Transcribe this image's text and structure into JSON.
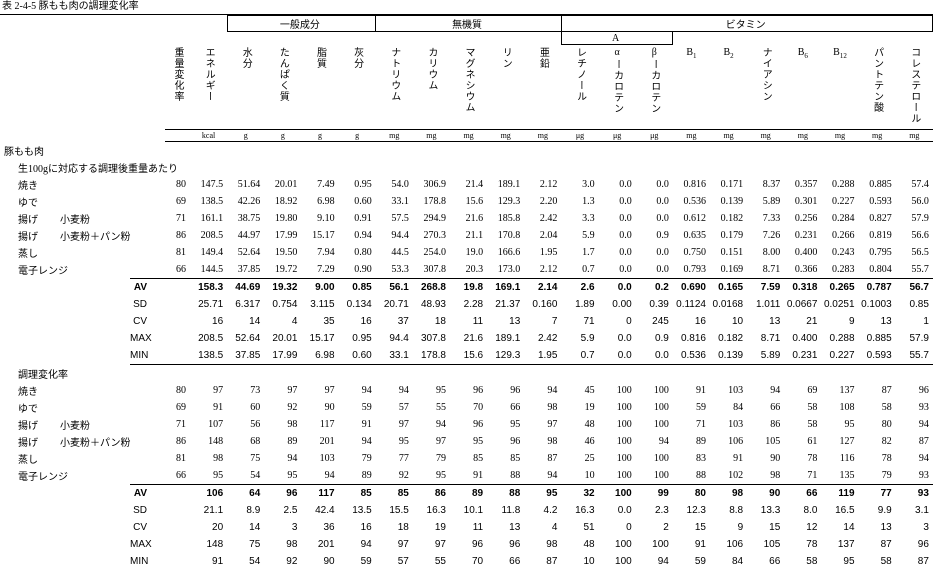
{
  "title": "表 2-4-5  豚もも肉の調理変化率",
  "groups": [
    {
      "label": "一般成分"
    },
    {
      "label": "無機質"
    },
    {
      "label": "ビタミン"
    },
    {
      "label": "A"
    }
  ],
  "columns": [
    {
      "label": "重量変化率"
    },
    {
      "label": "エネルギー",
      "unit": "kcal"
    },
    {
      "label": "水分",
      "unit": "g"
    },
    {
      "label": "たんぱく質",
      "unit": "g"
    },
    {
      "label": "脂質",
      "unit": "g"
    },
    {
      "label": "灰分",
      "unit": "g"
    },
    {
      "label": "ナトリウム",
      "unit": "mg"
    },
    {
      "label": "カリウム",
      "unit": "mg"
    },
    {
      "label": "マグネシウム",
      "unit": "mg"
    },
    {
      "label": "リン",
      "unit": "mg"
    },
    {
      "label": "亜鉛",
      "unit": "mg"
    },
    {
      "label": "レチノール",
      "unit": "μg"
    },
    {
      "label": "αーカロテン",
      "unit": "μg"
    },
    {
      "label": "βーカロテン",
      "unit": "μg"
    },
    {
      "label": "B",
      "sub": "1",
      "unit": "mg"
    },
    {
      "label": "B",
      "sub": "2",
      "unit": "mg"
    },
    {
      "label": "ナイアシン",
      "unit": "mg"
    },
    {
      "label": "B",
      "sub": "6",
      "unit": "mg"
    },
    {
      "label": "B",
      "sub": "12",
      "unit": "mg"
    },
    {
      "label": "パントテン酸",
      "unit": "mg"
    },
    {
      "label": "コレステロール",
      "unit": "mg"
    }
  ],
  "sections": [
    {
      "title": "豚もも肉",
      "subtitle": "生100gに対応する調理後重量あたり",
      "rows": [
        {
          "label": "焼き",
          "values": [
            "80",
            "147.5",
            "51.64",
            "20.01",
            "7.49",
            "0.95",
            "54.0",
            "306.9",
            "21.4",
            "189.1",
            "2.12",
            "3.0",
            "0.0",
            "0.0",
            "0.816",
            "0.171",
            "8.37",
            "0.357",
            "0.288",
            "0.885",
            "57.4"
          ]
        },
        {
          "label": "ゆで",
          "values": [
            "69",
            "138.5",
            "42.26",
            "18.92",
            "6.98",
            "0.60",
            "33.1",
            "178.8",
            "15.6",
            "129.3",
            "2.20",
            "1.3",
            "0.0",
            "0.0",
            "0.536",
            "0.139",
            "5.89",
            "0.301",
            "0.227",
            "0.593",
            "56.0"
          ]
        },
        {
          "label": "揚げ",
          "sub": "小麦粉",
          "values": [
            "71",
            "161.1",
            "38.75",
            "19.80",
            "9.10",
            "0.91",
            "57.5",
            "294.9",
            "21.6",
            "185.8",
            "2.42",
            "3.3",
            "0.0",
            "0.0",
            "0.612",
            "0.182",
            "7.33",
            "0.256",
            "0.284",
            "0.827",
            "57.9"
          ]
        },
        {
          "label": "揚げ",
          "sub": "小麦粉＋パン粉",
          "values": [
            "86",
            "208.5",
            "44.97",
            "17.99",
            "15.17",
            "0.94",
            "94.4",
            "270.3",
            "21.1",
            "170.8",
            "2.04",
            "5.9",
            "0.0",
            "0.9",
            "0.635",
            "0.179",
            "7.26",
            "0.231",
            "0.266",
            "0.819",
            "56.6"
          ]
        },
        {
          "label": "蒸し",
          "values": [
            "81",
            "149.4",
            "52.64",
            "19.50",
            "7.94",
            "0.80",
            "44.5",
            "254.0",
            "19.0",
            "166.6",
            "1.95",
            "1.7",
            "0.0",
            "0.0",
            "0.750",
            "0.151",
            "8.00",
            "0.400",
            "0.243",
            "0.795",
            "56.5"
          ]
        },
        {
          "label": "電子レンジ",
          "values": [
            "66",
            "144.5",
            "37.85",
            "19.72",
            "7.29",
            "0.90",
            "53.3",
            "307.8",
            "20.3",
            "173.0",
            "2.12",
            "0.7",
            "0.0",
            "0.0",
            "0.793",
            "0.169",
            "8.71",
            "0.366",
            "0.283",
            "0.804",
            "55.7"
          ]
        }
      ],
      "stats": [
        {
          "label": "AV",
          "values": [
            "158.3",
            "44.69",
            "19.32",
            "9.00",
            "0.85",
            "56.1",
            "268.8",
            "19.8",
            "169.1",
            "2.14",
            "2.6",
            "0.0",
            "0.2",
            "0.690",
            "0.165",
            "7.59",
            "0.318",
            "0.265",
            "0.787",
            "56.7"
          ]
        },
        {
          "label": "SD",
          "values": [
            "25.71",
            "6.317",
            "0.754",
            "3.115",
            "0.134",
            "20.71",
            "48.93",
            "2.28",
            "21.37",
            "0.160",
            "1.89",
            "0.00",
            "0.39",
            "0.1124",
            "0.0168",
            "1.011",
            "0.0667",
            "0.0251",
            "0.1003",
            "0.85"
          ]
        },
        {
          "label": "CV",
          "values": [
            "16",
            "14",
            "4",
            "35",
            "16",
            "37",
            "18",
            "11",
            "13",
            "7",
            "71",
            "0",
            "245",
            "16",
            "10",
            "13",
            "21",
            "9",
            "13",
            "1"
          ]
        },
        {
          "label": "MAX",
          "values": [
            "208.5",
            "52.64",
            "20.01",
            "15.17",
            "0.95",
            "94.4",
            "307.8",
            "21.6",
            "189.1",
            "2.42",
            "5.9",
            "0.0",
            "0.9",
            "0.816",
            "0.182",
            "8.71",
            "0.400",
            "0.288",
            "0.885",
            "57.9"
          ]
        },
        {
          "label": "MIN",
          "values": [
            "138.5",
            "37.85",
            "17.99",
            "6.98",
            "0.60",
            "33.1",
            "178.8",
            "15.6",
            "129.3",
            "1.95",
            "0.7",
            "0.0",
            "0.0",
            "0.536",
            "0.139",
            "5.89",
            "0.231",
            "0.227",
            "0.593",
            "55.7"
          ]
        }
      ]
    },
    {
      "subtitle": "調理変化率",
      "rows": [
        {
          "label": "焼き",
          "values": [
            "80",
            "97",
            "73",
            "97",
            "97",
            "94",
            "94",
            "95",
            "96",
            "96",
            "94",
            "45",
            "100",
            "100",
            "91",
            "103",
            "94",
            "69",
            "137",
            "87",
            "96"
          ]
        },
        {
          "label": "ゆで",
          "values": [
            "69",
            "91",
            "60",
            "92",
            "90",
            "59",
            "57",
            "55",
            "70",
            "66",
            "98",
            "19",
            "100",
            "100",
            "59",
            "84",
            "66",
            "58",
            "108",
            "58",
            "93"
          ]
        },
        {
          "label": "揚げ",
          "sub": "小麦粉",
          "values": [
            "71",
            "107",
            "56",
            "98",
            "117",
            "91",
            "97",
            "94",
            "96",
            "95",
            "97",
            "48",
            "100",
            "100",
            "71",
            "103",
            "86",
            "58",
            "95",
            "80",
            "94"
          ]
        },
        {
          "label": "揚げ",
          "sub": "小麦粉＋パン粉",
          "values": [
            "86",
            "148",
            "68",
            "89",
            "201",
            "94",
            "95",
            "97",
            "95",
            "96",
            "98",
            "46",
            "100",
            "94",
            "89",
            "106",
            "105",
            "61",
            "127",
            "82",
            "87"
          ]
        },
        {
          "label": "蒸し",
          "values": [
            "81",
            "98",
            "75",
            "94",
            "103",
            "79",
            "77",
            "79",
            "85",
            "85",
            "87",
            "25",
            "100",
            "100",
            "83",
            "91",
            "90",
            "78",
            "116",
            "78",
            "94"
          ]
        },
        {
          "label": "電子レンジ",
          "values": [
            "66",
            "95",
            "54",
            "95",
            "94",
            "89",
            "92",
            "95",
            "91",
            "88",
            "94",
            "10",
            "100",
            "100",
            "88",
            "102",
            "98",
            "71",
            "135",
            "79",
            "93"
          ]
        }
      ],
      "stats": [
        {
          "label": "AV",
          "values": [
            "106",
            "64",
            "96",
            "117",
            "85",
            "85",
            "86",
            "89",
            "88",
            "95",
            "32",
            "100",
            "99",
            "80",
            "98",
            "90",
            "66",
            "119",
            "77",
            "93"
          ]
        },
        {
          "label": "SD",
          "values": [
            "21.1",
            "8.9",
            "2.5",
            "42.4",
            "13.5",
            "15.5",
            "16.3",
            "10.1",
            "11.8",
            "4.2",
            "16.3",
            "0.0",
            "2.3",
            "12.3",
            "8.8",
            "13.3",
            "8.0",
            "16.5",
            "9.9",
            "3.1"
          ]
        },
        {
          "label": "CV",
          "values": [
            "20",
            "14",
            "3",
            "36",
            "16",
            "18",
            "19",
            "11",
            "13",
            "4",
            "51",
            "0",
            "2",
            "15",
            "9",
            "15",
            "12",
            "14",
            "13",
            "3"
          ]
        },
        {
          "label": "MAX",
          "values": [
            "148",
            "75",
            "98",
            "201",
            "94",
            "97",
            "97",
            "96",
            "96",
            "98",
            "48",
            "100",
            "100",
            "91",
            "106",
            "105",
            "78",
            "137",
            "87",
            "96"
          ]
        },
        {
          "label": "MIN",
          "values": [
            "91",
            "54",
            "92",
            "90",
            "59",
            "57",
            "55",
            "70",
            "66",
            "87",
            "10",
            "100",
            "94",
            "59",
            "84",
            "66",
            "58",
            "95",
            "58",
            "87"
          ]
        }
      ]
    }
  ]
}
